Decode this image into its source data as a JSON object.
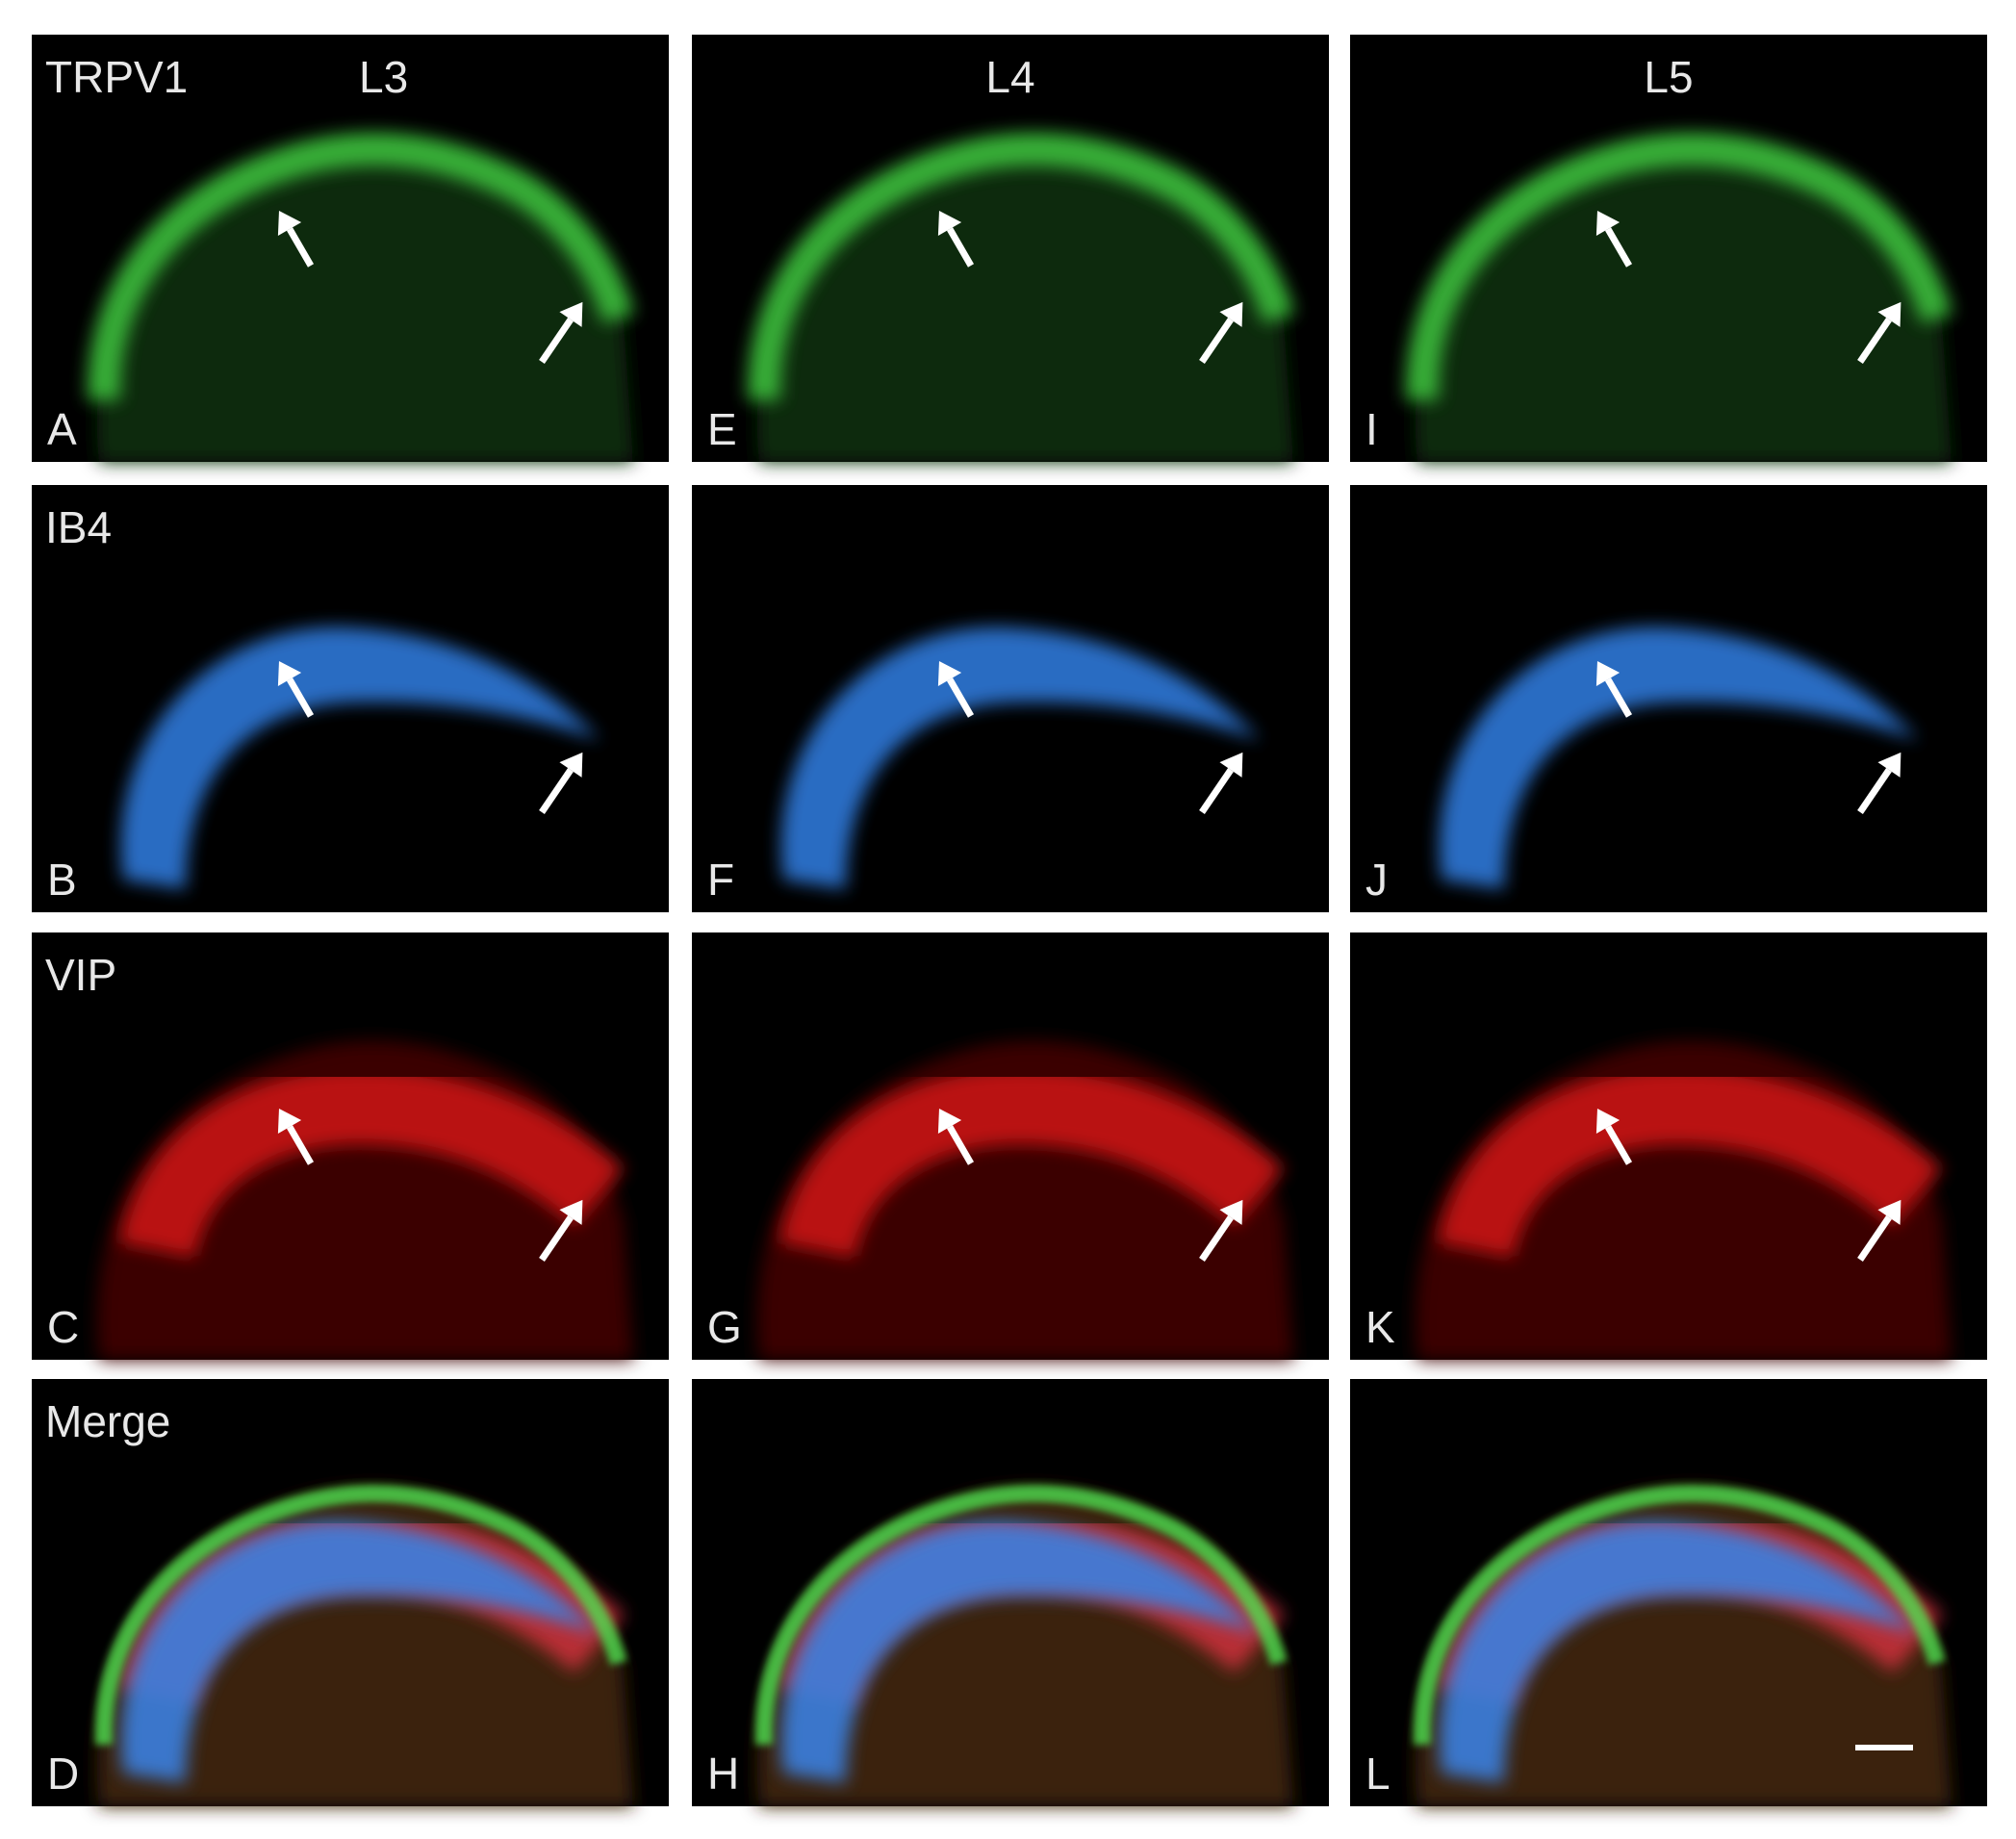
{
  "columns": [
    "L3",
    "L4",
    "L5"
  ],
  "rows": [
    "TRPV1",
    "IB4",
    "VIP",
    "Merge"
  ],
  "panels": [
    [
      "A",
      "E",
      "I"
    ],
    [
      "B",
      "F",
      "J"
    ],
    [
      "C",
      "G",
      "K"
    ],
    [
      "D",
      "H",
      "L"
    ]
  ]
}
